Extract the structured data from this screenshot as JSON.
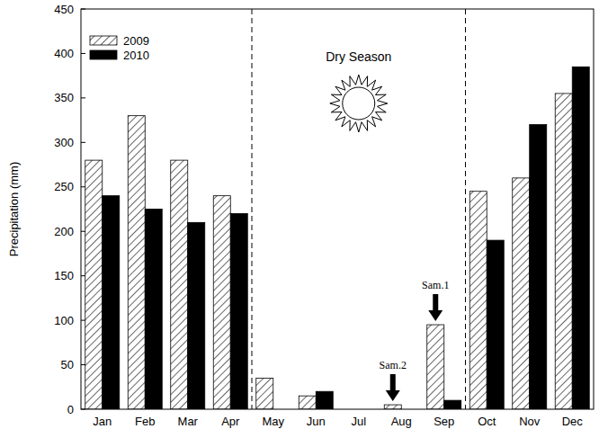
{
  "chart_data": {
    "type": "bar",
    "ylabel": "Precipitation (mm)",
    "categories": [
      "Jan",
      "Feb",
      "Mar",
      "Apr",
      "May",
      "Jun",
      "Jul",
      "Aug",
      "Sep",
      "Oct",
      "Nov",
      "Dec"
    ],
    "series": [
      {
        "name": "2009",
        "color": "#000000",
        "line_style": "hatched",
        "values": [
          280,
          330,
          280,
          240,
          35,
          15,
          0,
          5,
          95,
          245,
          260,
          355
        ]
      },
      {
        "name": "2010",
        "color": "#000000",
        "values": [
          240,
          225,
          210,
          220,
          0,
          20,
          0,
          0,
          10,
          190,
          320,
          385
        ]
      }
    ],
    "ylim": [
      0,
      450
    ],
    "yticks": [
      0,
      50,
      100,
      150,
      200,
      250,
      300,
      350,
      400,
      450
    ],
    "grid": false,
    "legend": "upper left",
    "annotations": [
      {
        "text": "Dry Season",
        "from": "May",
        "to": "Sep"
      },
      {
        "text": "Sam.1",
        "category": "Sep",
        "series": "2009"
      },
      {
        "text": "Sam.2",
        "category": "Aug",
        "series": "2009"
      }
    ]
  }
}
